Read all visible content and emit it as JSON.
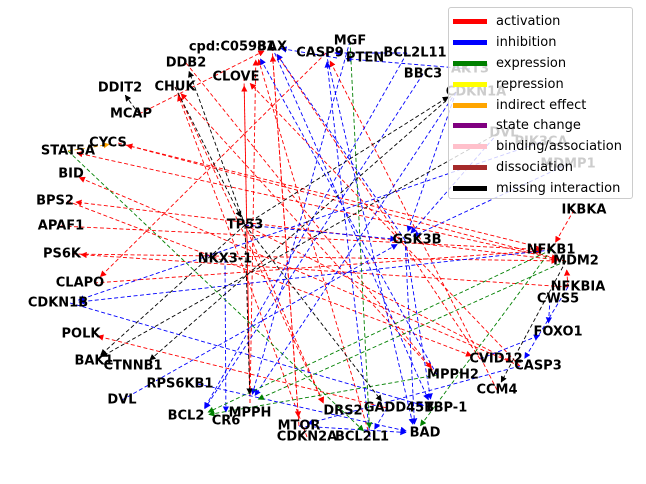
{
  "diagram": {
    "nodes": [
      {
        "id": "cpd",
        "label": "cpd:C05981"
      },
      {
        "id": "BAX",
        "label": "BAX"
      },
      {
        "id": "CASP9",
        "label": "CASP9"
      },
      {
        "id": "MGF",
        "label": "MGF"
      },
      {
        "id": "PTEN",
        "label": "PTEN"
      },
      {
        "id": "BCL2L11",
        "label": "BCL2L11"
      },
      {
        "id": "AKT3",
        "label": "AKT3"
      },
      {
        "id": "BBC3",
        "label": "BBC3"
      },
      {
        "id": "CDKN1A",
        "label": "CDKN1A"
      },
      {
        "id": "DDB2",
        "label": "DDB2"
      },
      {
        "id": "CLOVE",
        "label": "CLOVE"
      },
      {
        "id": "CHUK",
        "label": "CHUK"
      },
      {
        "id": "DDIT2",
        "label": "DDIT2"
      },
      {
        "id": "MCAP",
        "label": "MCAP"
      },
      {
        "id": "CYCS",
        "label": "CYCS"
      },
      {
        "id": "STAT5A",
        "label": "STAT5A"
      },
      {
        "id": "BID",
        "label": "BID"
      },
      {
        "id": "BPS2",
        "label": "BPS2"
      },
      {
        "id": "APAF1",
        "label": "APAF1"
      },
      {
        "id": "PS6K",
        "label": "PS6K"
      },
      {
        "id": "CLAPO",
        "label": "CLAPO"
      },
      {
        "id": "CDKN1B",
        "label": "CDKN1B"
      },
      {
        "id": "POLK",
        "label": "POLK"
      },
      {
        "id": "BAK1",
        "label": "BAK1"
      },
      {
        "id": "CTNNB1",
        "label": "CTNNB1"
      },
      {
        "id": "RPS6KB1",
        "label": "RPS6KB1"
      },
      {
        "id": "DVL",
        "label": "DVL"
      },
      {
        "id": "BCL2",
        "label": "BCL2"
      },
      {
        "id": "CR6",
        "label": "CR6"
      },
      {
        "id": "MPPH",
        "label": "MPPH"
      },
      {
        "id": "MTOR",
        "label": "MTOR"
      },
      {
        "id": "CDKN2A",
        "label": "CDKN2A"
      },
      {
        "id": "DRS2",
        "label": "DRS2"
      },
      {
        "id": "BCL2L1",
        "label": "BCL2L1"
      },
      {
        "id": "GADD45B",
        "label": "GADD45B"
      },
      {
        "id": "TBP1",
        "label": "TBP-1"
      },
      {
        "id": "BAD",
        "label": "BAD"
      },
      {
        "id": "TP53",
        "label": "TP53"
      },
      {
        "id": "NKX31",
        "label": "NKX3-1"
      },
      {
        "id": "GSK3B",
        "label": "GSK3B"
      },
      {
        "id": "IKBKA",
        "label": "IKBKA"
      },
      {
        "id": "NFKB1",
        "label": "NFKB1"
      },
      {
        "id": "MDM2",
        "label": "MDM2"
      },
      {
        "id": "NFKBIA",
        "label": "NFKBIA"
      },
      {
        "id": "CWS5",
        "label": "CWS5"
      },
      {
        "id": "FOXO1",
        "label": "FOXO1"
      },
      {
        "id": "CVID12",
        "label": "CVID12"
      },
      {
        "id": "CASP3",
        "label": "CASP3"
      },
      {
        "id": "MPPH2",
        "label": "MPPH2"
      },
      {
        "id": "CCM4",
        "label": "CCM4"
      },
      {
        "id": "DVL2",
        "label": "DVL"
      },
      {
        "id": "PIK3CA",
        "label": "PIK3CA"
      },
      {
        "id": "MDMP1",
        "label": "MDMP1"
      }
    ],
    "edges": [
      {
        "from": "NFKB1",
        "to": "CYCS",
        "type": "activation"
      },
      {
        "from": "MDM2",
        "to": "BPS2",
        "type": "activation"
      },
      {
        "from": "CASP3",
        "to": "CLOVE",
        "type": "activation"
      },
      {
        "from": "CVID12",
        "to": "BAX",
        "type": "activation"
      },
      {
        "from": "MPPH2",
        "to": "CHUK",
        "type": "activation"
      },
      {
        "from": "CCM4",
        "to": "CASP9",
        "type": "activation"
      },
      {
        "from": "MPPH",
        "to": "cpd",
        "type": "activation"
      },
      {
        "from": "MPPH",
        "to": "CLOVE",
        "type": "activation"
      },
      {
        "from": "MTOR",
        "to": "BAX",
        "type": "activation"
      },
      {
        "from": "CDKN2A",
        "to": "CHUK",
        "type": "activation"
      },
      {
        "from": "BCL2L1",
        "to": "cpd",
        "type": "activation"
      },
      {
        "from": "NFKBIA",
        "to": "PS6K",
        "type": "activation"
      },
      {
        "from": "MDM2",
        "to": "STAT5A",
        "type": "activation"
      },
      {
        "from": "CASP3",
        "to": "BID",
        "type": "activation"
      },
      {
        "from": "BPS2",
        "to": "CVID12",
        "type": "activation"
      },
      {
        "from": "PS6K",
        "to": "MDM2",
        "type": "activation"
      },
      {
        "from": "APAF1",
        "to": "NFKB1",
        "type": "activation"
      },
      {
        "from": "CASP9",
        "to": "CLAPO",
        "type": "activation"
      },
      {
        "from": "CLOVE",
        "to": "MPPH",
        "type": "activation"
      },
      {
        "from": "BAX",
        "to": "MTOR",
        "type": "activation"
      },
      {
        "from": "TP53",
        "to": "CASP3",
        "type": "activation"
      },
      {
        "from": "IKBKA",
        "to": "NFKB1",
        "type": "activation"
      },
      {
        "from": "NFKBIA",
        "to": "MDM2",
        "type": "activation"
      },
      {
        "from": "GADD45B",
        "to": "POLK",
        "type": "activation"
      },
      {
        "from": "CHUK",
        "to": "DRS2",
        "type": "activation"
      },
      {
        "from": "DDB2",
        "to": "MPPH2",
        "type": "activation"
      },
      {
        "from": "CYCS",
        "to": "MDM2",
        "type": "activation"
      },
      {
        "from": "TP53",
        "to": "DRS2",
        "type": "activation"
      },
      {
        "from": "BCL2L11",
        "to": "CASP9",
        "type": "activation"
      },
      {
        "from": "CLAPO",
        "to": "NFKB1",
        "type": "activation"
      },
      {
        "from": "MCAP",
        "to": "BAX",
        "type": "activation"
      },
      {
        "from": "PTEN",
        "to": "BAX",
        "type": "inhibition"
      },
      {
        "from": "GSK3B",
        "to": "BAX",
        "type": "inhibition"
      },
      {
        "from": "MPPH2",
        "to": "cpd",
        "type": "inhibition"
      },
      {
        "from": "AKT3",
        "to": "PTEN",
        "type": "inhibition"
      },
      {
        "from": "BBC3",
        "to": "BCL2",
        "type": "inhibition"
      },
      {
        "from": "CDKN1A",
        "to": "GSK3B",
        "type": "inhibition"
      },
      {
        "from": "CDKN1A",
        "to": "MPPH",
        "type": "inhibition"
      },
      {
        "from": "MDMP1",
        "to": "GSK3B",
        "type": "inhibition"
      },
      {
        "from": "PIK3CA",
        "to": "CDKN1B",
        "type": "inhibition"
      },
      {
        "from": "DVL2",
        "to": "GSK3B",
        "type": "inhibition"
      },
      {
        "from": "BCL2L11",
        "to": "BCL2",
        "type": "inhibition"
      },
      {
        "from": "BCL2L11",
        "to": "CASP9",
        "type": "inhibition"
      },
      {
        "from": "MGF",
        "to": "MPPH",
        "type": "inhibition"
      },
      {
        "from": "BAX",
        "to": "TBP1",
        "type": "inhibition"
      },
      {
        "from": "CASP9",
        "to": "BAD",
        "type": "inhibition"
      },
      {
        "from": "TP53",
        "to": "GSK3B",
        "type": "inhibition"
      },
      {
        "from": "GSK3B",
        "to": "TBP1",
        "type": "inhibition"
      },
      {
        "from": "GSK3B",
        "to": "BAD",
        "type": "inhibition"
      },
      {
        "from": "NFKB1",
        "to": "CDKN1B",
        "type": "inhibition"
      },
      {
        "from": "CWS5",
        "to": "FOXO1",
        "type": "inhibition"
      },
      {
        "from": "CVID12",
        "to": "FOXO1",
        "type": "inhibition"
      },
      {
        "from": "GADD45B",
        "to": "BCL2L1",
        "type": "inhibition"
      },
      {
        "from": "MTOR",
        "to": "BAD",
        "type": "inhibition"
      },
      {
        "from": "RPS6KB1",
        "to": "BAD",
        "type": "inhibition"
      },
      {
        "from": "DVL",
        "to": "GSK3B",
        "type": "inhibition"
      },
      {
        "from": "NKX31",
        "to": "CR6",
        "type": "inhibition"
      },
      {
        "from": "CASP3",
        "to": "MTOR",
        "type": "inhibition"
      },
      {
        "from": "CDKN1B",
        "to": "TBP1",
        "type": "inhibition"
      },
      {
        "from": "BCL2L1",
        "to": "CASP9",
        "type": "inhibition"
      },
      {
        "from": "NFKBIA",
        "to": "CASP3",
        "type": "inhibition"
      },
      {
        "from": "STAT5A",
        "to": "BCL2L1",
        "type": "expression"
      },
      {
        "from": "MGF",
        "to": "BCL2L1",
        "type": "expression"
      },
      {
        "from": "NFKB1",
        "to": "BCL2",
        "type": "expression"
      },
      {
        "from": "MDM2",
        "to": "MPPH",
        "type": "expression"
      },
      {
        "from": "NFKB1",
        "to": "BAD",
        "type": "expression"
      },
      {
        "from": "MPPH2",
        "to": "BCL2",
        "type": "expression"
      },
      {
        "from": "MCAP",
        "to": "DDIT2",
        "type": "missing"
      },
      {
        "from": "TP53",
        "to": "DDB2",
        "type": "missing"
      },
      {
        "from": "TP53",
        "to": "GADD45B",
        "type": "missing"
      },
      {
        "from": "TP53",
        "to": "CDKN1A",
        "type": "missing"
      },
      {
        "from": "TP53",
        "to": "BAK1",
        "type": "missing"
      },
      {
        "from": "TP53",
        "to": "MPPH",
        "type": "missing"
      },
      {
        "from": "CDKN1A",
        "to": "CTNNB1",
        "type": "missing"
      },
      {
        "from": "MDM2",
        "to": "CCM4",
        "type": "missing"
      },
      {
        "from": "CHUK",
        "to": "TP53",
        "type": "missing"
      },
      {
        "from": "DVL2",
        "to": "BAK1",
        "type": "missing"
      },
      {
        "from": "STAT5A",
        "to": "CYCS",
        "type": "indirect"
      }
    ],
    "edge_colors": {
      "activation": "#ff0000",
      "inhibition": "#0000ff",
      "expression": "#008000",
      "repression": "#ffff00",
      "indirect": "#ffa500",
      "state": "#800080",
      "binding": "#ffc0cb",
      "dissociation": "#a52a2a",
      "missing": "#000000"
    }
  },
  "legend": {
    "items": [
      {
        "label": "activation",
        "color": "#ff0000"
      },
      {
        "label": "inhibition",
        "color": "#0000ff"
      },
      {
        "label": "expression",
        "color": "#008000"
      },
      {
        "label": "repression",
        "color": "#ffff00"
      },
      {
        "label": "indirect effect",
        "color": "#ffa500"
      },
      {
        "label": "state change",
        "color": "#800080"
      },
      {
        "label": "binding/association",
        "color": "#ffc0cb"
      },
      {
        "label": "dissociation",
        "color": "#a52a2a"
      },
      {
        "label": "missing interaction",
        "color": "#000000"
      }
    ]
  }
}
